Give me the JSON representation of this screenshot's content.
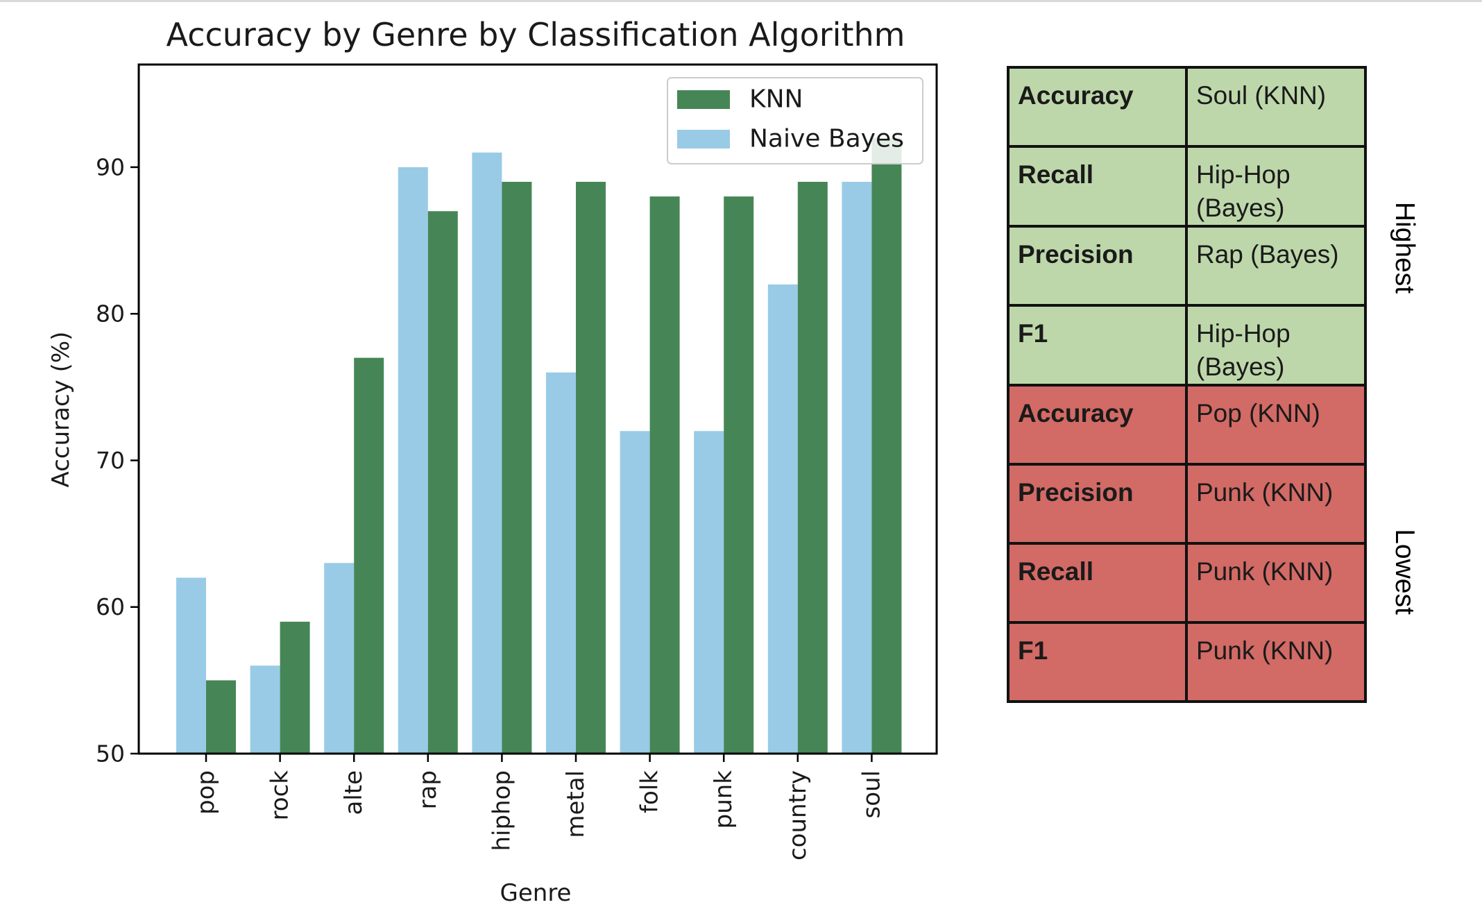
{
  "chart_data": {
    "type": "bar",
    "title": "Accuracy by Genre by Classification Algorithm",
    "xlabel": "Genre",
    "ylabel": "Accuracy (%)",
    "categories": [
      "pop",
      "rock",
      "alte",
      "rap",
      "hiphop",
      "metal",
      "folk",
      "punk",
      "country",
      "soul"
    ],
    "series": [
      {
        "name": "Naive Bayes",
        "color": "#99cbe6",
        "values": [
          62,
          56,
          63,
          90,
          91,
          76,
          72,
          72,
          82,
          89
        ]
      },
      {
        "name": "KNN",
        "color": "#468656",
        "values": [
          55,
          59,
          77,
          87,
          89,
          89,
          88,
          88,
          89,
          92
        ]
      }
    ],
    "legend_order": [
      "KNN",
      "Naive Bayes"
    ],
    "ylim": [
      50,
      97
    ],
    "yticks": [
      50,
      60,
      70,
      80,
      90
    ],
    "grid": false,
    "legend_position": "top-right"
  },
  "summary_table": {
    "highest_label": "Highest",
    "lowest_label": "Lowest",
    "highest_rows": [
      {
        "metric": "Accuracy",
        "value": "Soul (KNN)"
      },
      {
        "metric": "Recall",
        "value": "Hip-Hop (Bayes)"
      },
      {
        "metric": "Precision",
        "value": "Rap (Bayes)"
      },
      {
        "metric": "F1",
        "value": "Hip-Hop (Bayes)"
      }
    ],
    "lowest_rows": [
      {
        "metric": "Accuracy",
        "value": "Pop (KNN)"
      },
      {
        "metric": "Precision",
        "value": "Punk (KNN)"
      },
      {
        "metric": "Recall",
        "value": "Punk (KNN)"
      },
      {
        "metric": "F1",
        "value": "Punk (KNN)"
      }
    ],
    "colors": {
      "highest": "#bdd7aa",
      "lowest": "#d26a65"
    }
  }
}
